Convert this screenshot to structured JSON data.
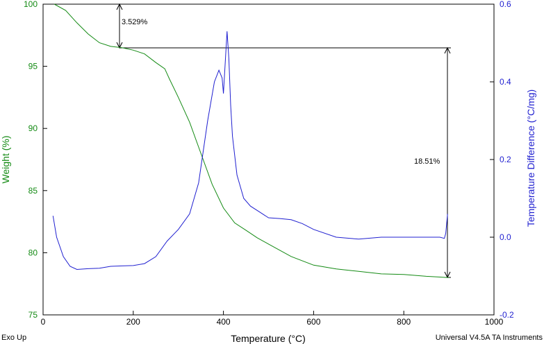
{
  "chart_data": {
    "type": "line",
    "xlabel": "Temperature (°C)",
    "ylabel_left": "Weight (%)",
    "ylabel_right": "Temperature Difference (°C/mg)",
    "xlim": [
      0,
      1000
    ],
    "ylim_left": [
      75,
      100
    ],
    "ylim_right": [
      -0.2,
      0.6
    ],
    "x_ticks": [
      "0",
      "200",
      "400",
      "600",
      "800",
      "1000"
    ],
    "y_left_ticks": [
      "75",
      "80",
      "85",
      "90",
      "95",
      "100"
    ],
    "y_right_ticks": [
      "-0.2",
      "0.0",
      "0.2",
      "0.4",
      "0.6"
    ],
    "grid": false,
    "colors": {
      "weight": "#138a13",
      "temp_diff": "#1f1fd0"
    },
    "series": [
      {
        "axis": "left",
        "x": [
          25,
          50,
          75,
          100,
          125,
          150,
          175,
          200,
          225,
          250,
          270,
          275,
          280,
          300,
          325,
          350,
          375,
          400,
          425,
          450,
          475,
          500,
          550,
          600,
          650,
          700,
          750,
          800,
          850,
          900
        ],
        "y": [
          100,
          99.5,
          98.5,
          97.6,
          96.9,
          96.6,
          96.5,
          96.3,
          96.0,
          95.3,
          94.8,
          94.4,
          94.0,
          92.5,
          90.5,
          88.0,
          85.5,
          83.6,
          82.4,
          81.8,
          81.2,
          80.7,
          79.7,
          79.0,
          78.7,
          78.5,
          78.3,
          78.25,
          78.1,
          78.0
        ]
      },
      {
        "axis": "right",
        "x": [
          22,
          30,
          45,
          60,
          75,
          100,
          125,
          150,
          175,
          200,
          225,
          250,
          275,
          300,
          325,
          345,
          365,
          380,
          390,
          397,
          400,
          404,
          408,
          412,
          416,
          420,
          430,
          445,
          460,
          480,
          500,
          525,
          550,
          575,
          600,
          650,
          700,
          750,
          800,
          850,
          880,
          890,
          893,
          895,
          897
        ],
        "y": [
          0.055,
          0.0,
          -0.05,
          -0.075,
          -0.083,
          -0.081,
          -0.08,
          -0.075,
          -0.074,
          -0.073,
          -0.068,
          -0.05,
          -0.01,
          0.02,
          0.06,
          0.14,
          0.3,
          0.4,
          0.43,
          0.41,
          0.37,
          0.45,
          0.53,
          0.46,
          0.34,
          0.26,
          0.16,
          0.1,
          0.08,
          0.065,
          0.05,
          0.048,
          0.045,
          0.035,
          0.02,
          0.0,
          -0.005,
          0.0,
          0.0,
          0.0,
          0.0,
          -0.003,
          0.01,
          0.035,
          0.06
        ]
      }
    ],
    "annotations": [
      "3.529%",
      "18.51%"
    ]
  },
  "footer": {
    "left": "Exo Up",
    "right": "Universal V4.5A TA Instruments"
  }
}
